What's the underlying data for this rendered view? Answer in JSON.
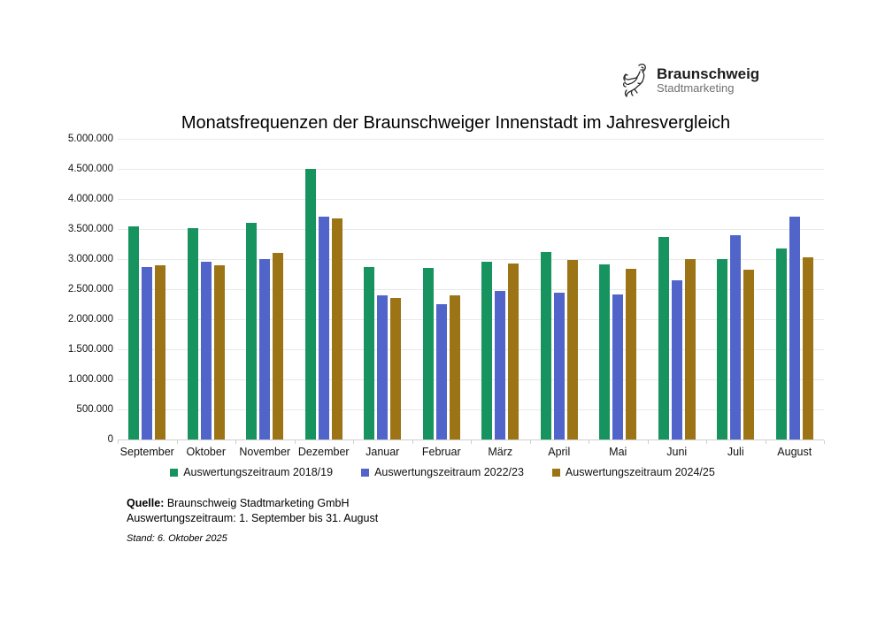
{
  "header": {
    "logo": {
      "brand": "Braunschweig",
      "subtitle": "Stadtmarketing",
      "icon": "braunschweig-lion-icon"
    }
  },
  "title": "Monatsfrequenzen der Braunschweiger Innenstadt im Jahresvergleich",
  "chart_data": {
    "type": "bar",
    "title": "Monatsfrequenzen der Braunschweiger Innenstadt im Jahresvergleich",
    "categories": [
      "September",
      "Oktober",
      "November",
      "Dezember",
      "Januar",
      "Februar",
      "März",
      "April",
      "Mai",
      "Juni",
      "Juli",
      "August"
    ],
    "series": [
      {
        "name": "Auswertungszeitraum 2018/19",
        "color": "#17935F",
        "values": [
          3550000,
          3520000,
          3600000,
          4500000,
          2870000,
          2860000,
          2960000,
          3120000,
          2910000,
          3370000,
          3000000,
          3170000
        ]
      },
      {
        "name": "Auswertungszeitraum 2022/23",
        "color": "#5164C9",
        "values": [
          2870000,
          2950000,
          3000000,
          3700000,
          2400000,
          2250000,
          2470000,
          2440000,
          2410000,
          2640000,
          3400000,
          3700000
        ]
      },
      {
        "name": "Auswertungszeitraum 2024/25",
        "color": "#9C7416",
        "values": [
          2890000,
          2900000,
          3110000,
          3680000,
          2350000,
          2400000,
          2920000,
          2990000,
          2840000,
          3000000,
          2830000,
          3030000
        ]
      }
    ],
    "xlabel": "",
    "ylabel": "",
    "ylim": [
      0,
      5000000
    ],
    "ytick_step": 500000,
    "ytick_labels": [
      "0",
      "500.000",
      "1.000.000",
      "1.500.000",
      "2.000.000",
      "2.500.000",
      "3.000.000",
      "3.500.000",
      "4.000.000",
      "4.500.000",
      "5.000.000"
    ],
    "grid": true,
    "legend_position": "bottom"
  },
  "footer": {
    "source_label": "Quelle:",
    "source_text": " Braunschweig Stadtmarketing GmbH",
    "period_line": "Auswertungszeitraum: 1. September bis 31. August",
    "stand_line": "Stand: 6. Oktober 2025"
  },
  "colors": {
    "grid": "#e9e9e9",
    "axis": "#cfcfcf",
    "text": "#111111",
    "logo_subtext": "#6f6f6f"
  }
}
